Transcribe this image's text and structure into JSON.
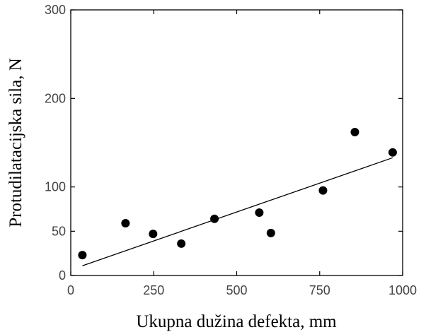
{
  "chart_data": {
    "type": "scatter",
    "title": "",
    "xlabel": "Ukupna dužina defekta, mm",
    "ylabel": "Protudilatacijska sila, N",
    "xlim": [
      0,
      1000
    ],
    "ylim": [
      0,
      300
    ],
    "grid": false,
    "legend": "none",
    "x_ticks": [
      0,
      250,
      500,
      750,
      1000
    ],
    "x_tick_labels": [
      "0",
      "250",
      "500",
      "750",
      "1000"
    ],
    "y_ticks": [
      0,
      50,
      100,
      200,
      300
    ],
    "y_tick_labels": [
      "0",
      "50",
      "100",
      "200",
      "300"
    ],
    "series": [
      {
        "points": [
          {
            "x": 35,
            "y": 23
          },
          {
            "x": 165,
            "y": 59
          },
          {
            "x": 248,
            "y": 47
          },
          {
            "x": 333,
            "y": 36
          },
          {
            "x": 433,
            "y": 64
          },
          {
            "x": 568,
            "y": 71
          },
          {
            "x": 603,
            "y": 48
          },
          {
            "x": 760,
            "y": 96
          },
          {
            "x": 856,
            "y": 162
          },
          {
            "x": 970,
            "y": 139
          }
        ]
      }
    ],
    "trendline": {
      "x": [
        35,
        970
      ],
      "y": [
        11,
        133
      ]
    },
    "colors": {
      "marker": "#000000",
      "line": "#000000",
      "axis": "#000000",
      "tick_text": "#444444"
    }
  }
}
